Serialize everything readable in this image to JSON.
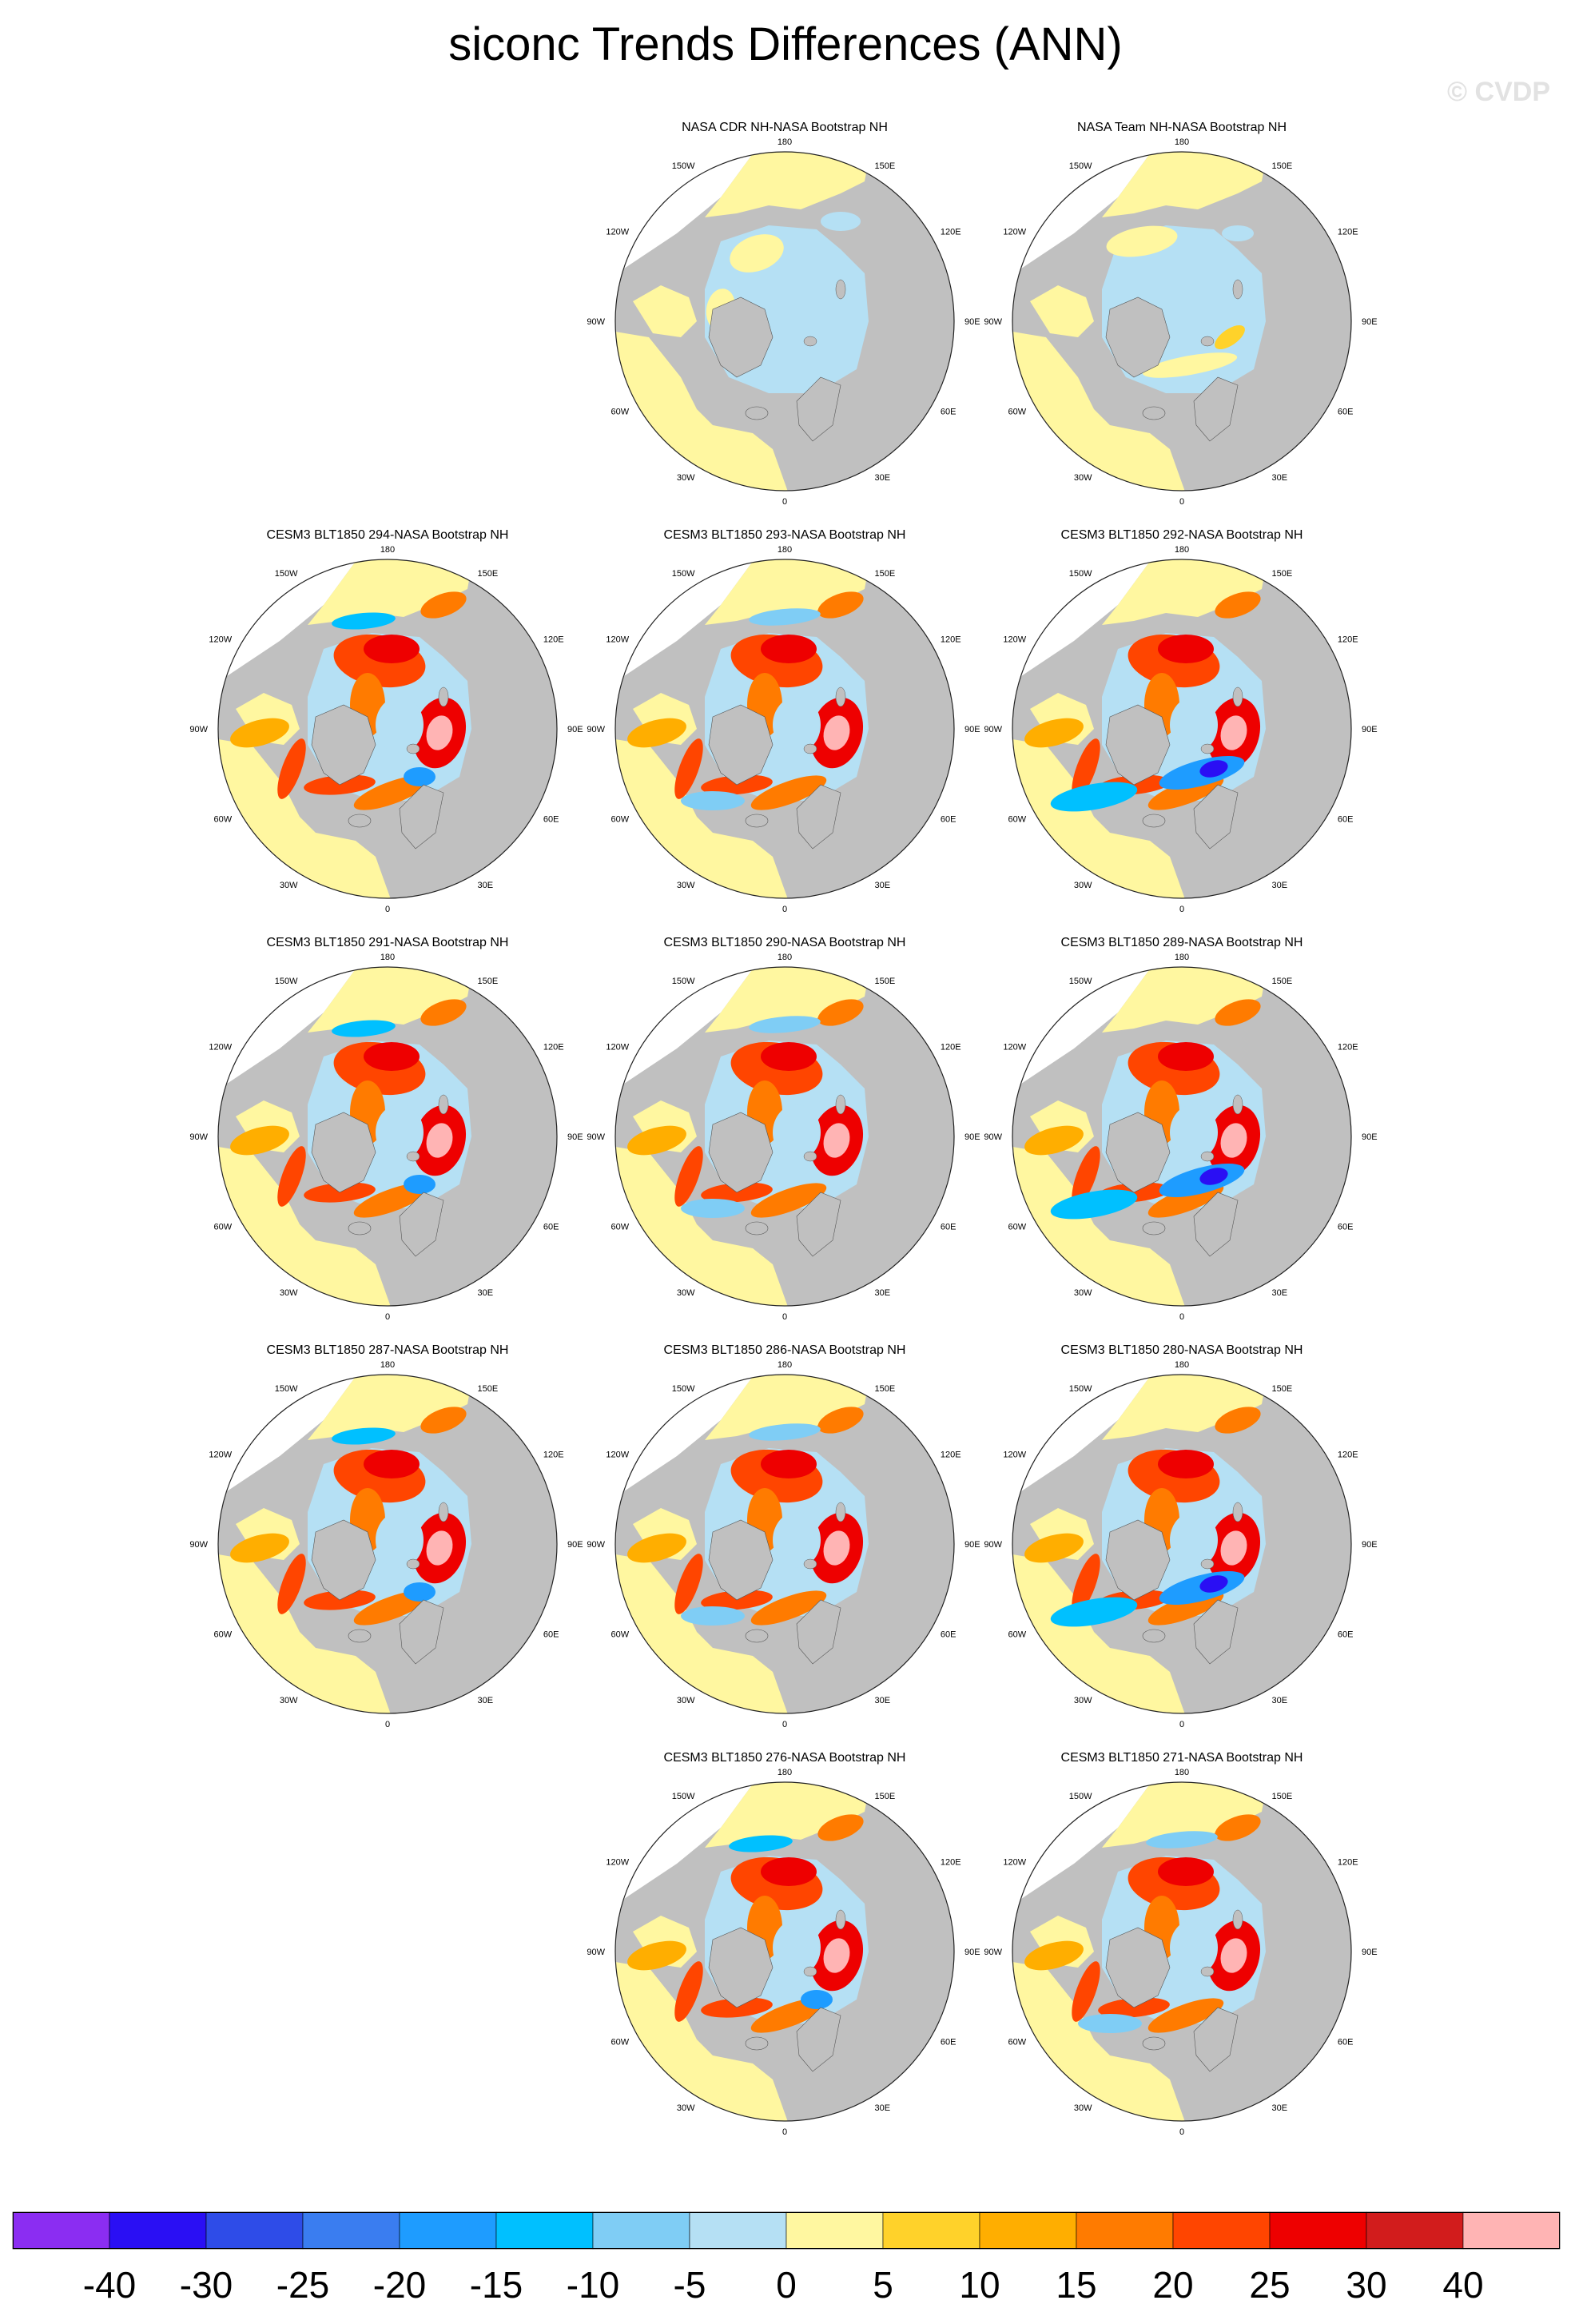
{
  "title": "siconc Trends Differences (ANN)",
  "watermark": "© CVDP",
  "colors": {
    "land": "#c0c0c0",
    "ocean_nodata": "#ffffff",
    "levels": [
      "#8b2df2",
      "#2a0ff4",
      "#2e4ce8",
      "#3a7df0",
      "#1e9cff",
      "#00c0ff",
      "#7fcdf5",
      "#b5e0f4",
      "#fff7a0",
      "#ffd22a",
      "#ffae00",
      "#ff7b00",
      "#ff4500",
      "#ee0000",
      "#d21c1c",
      "#ffb4b4"
    ]
  },
  "chart_data": {
    "type": "heatmap",
    "projection": "north polar stereographic",
    "variable": "siconc",
    "season": "ANN",
    "colorbar": {
      "labels": [
        "-40",
        "-30",
        "-25",
        "-20",
        "-15",
        "-10",
        "-5",
        "0",
        "5",
        "10",
        "15",
        "20",
        "25",
        "30",
        "40"
      ],
      "bins": 16
    },
    "longitude_labels": [
      "180",
      "150E",
      "120E",
      "90E",
      "60E",
      "30E",
      "0",
      "30W",
      "60W",
      "90W",
      "120W",
      "150W"
    ],
    "panels": [
      {
        "title": "NASA CDR NH-NASA Bootstrap NH",
        "pattern": "obs",
        "variant": 1
      },
      {
        "title": "NASA Team NH-NASA Bootstrap NH",
        "pattern": "obs",
        "variant": 2
      },
      {
        "title": "CESM3 BLT1850 294-NASA Bootstrap NH",
        "pattern": "model",
        "variant": 1
      },
      {
        "title": "CESM3 BLT1850 293-NASA Bootstrap NH",
        "pattern": "model",
        "variant": 2
      },
      {
        "title": "CESM3 BLT1850 292-NASA Bootstrap NH",
        "pattern": "model",
        "variant": 3
      },
      {
        "title": "CESM3 BLT1850 291-NASA Bootstrap NH",
        "pattern": "model",
        "variant": 4
      },
      {
        "title": "CESM3 BLT1850 290-NASA Bootstrap NH",
        "pattern": "model",
        "variant": 5
      },
      {
        "title": "CESM3 BLT1850 289-NASA Bootstrap NH",
        "pattern": "model",
        "variant": 6
      },
      {
        "title": "CESM3 BLT1850 287-NASA Bootstrap NH",
        "pattern": "model",
        "variant": 7
      },
      {
        "title": "CESM3 BLT1850 286-NASA Bootstrap NH",
        "pattern": "model",
        "variant": 8
      },
      {
        "title": "CESM3 BLT1850 280-NASA Bootstrap NH",
        "pattern": "model",
        "variant": 9
      },
      {
        "title": "CESM3 BLT1850 276-NASA Bootstrap NH",
        "pattern": "model",
        "variant": 10
      },
      {
        "title": "CESM3 BLT1850 271-NASA Bootstrap NH",
        "pattern": "model",
        "variant": 11
      }
    ]
  }
}
